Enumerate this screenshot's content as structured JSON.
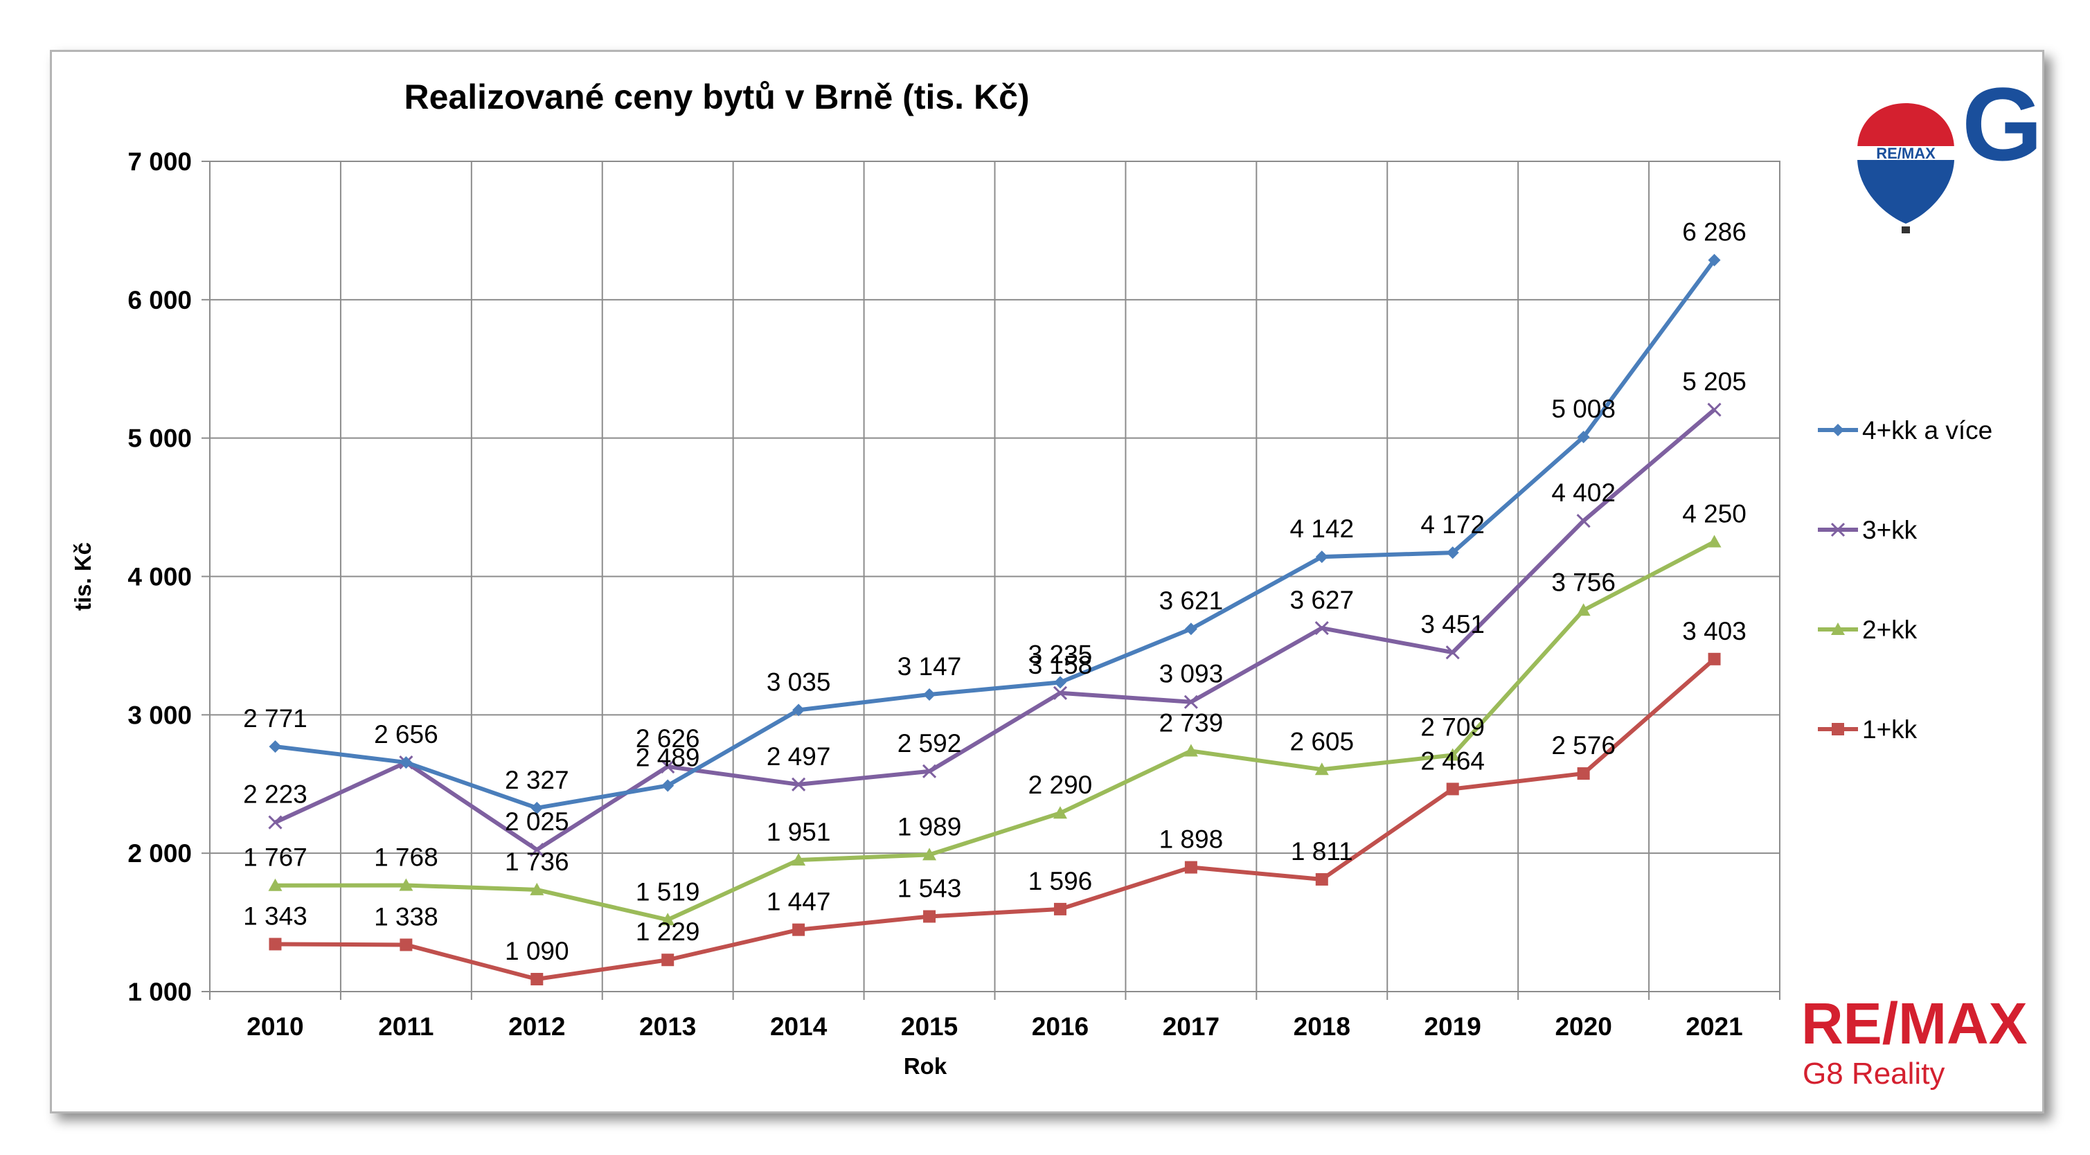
{
  "chart_data": {
    "type": "line",
    "title": "Realizované ceny bytů v Brně (tis. Kč)",
    "xlabel": "Rok",
    "ylabel": "tis. Kč",
    "categories": [
      "2010",
      "2011",
      "2012",
      "2013",
      "2014",
      "2015",
      "2016",
      "2017",
      "2018",
      "2019",
      "2020",
      "2021"
    ],
    "ylim": [
      1000,
      7000
    ],
    "yticks": [
      1000,
      2000,
      3000,
      4000,
      5000,
      6000,
      7000
    ],
    "ytick_labels": [
      "1 000",
      "2 000",
      "3 000",
      "4 000",
      "5 000",
      "6 000",
      "7 000"
    ],
    "grid": true,
    "legend_position": "right",
    "series": [
      {
        "name": "4+kk a více",
        "color": "#4a7ebb",
        "marker": "diamond",
        "values": [
          2771,
          2656,
          2327,
          2489,
          3035,
          3147,
          3235,
          3621,
          4142,
          4172,
          5008,
          6286
        ],
        "labels": [
          "2 771",
          "2 656",
          "2 327",
          "2 489",
          "3 035",
          "3 147",
          "3 235",
          "3 621",
          "4 142",
          "4 172",
          "5 008",
          "6 286"
        ]
      },
      {
        "name": "3+kk",
        "color": "#7e60a0",
        "marker": "x",
        "values": [
          2223,
          2656,
          2025,
          2626,
          2497,
          2592,
          3158,
          3093,
          3627,
          3451,
          4402,
          5205
        ],
        "labels": [
          "2 223",
          "",
          "2 025",
          "2 626",
          "2 497",
          "2 592",
          "3 158",
          "3 093",
          "3 627",
          "3 451",
          "4 402",
          "5 205"
        ]
      },
      {
        "name": "2+kk",
        "color": "#9bbb59",
        "marker": "triangle",
        "values": [
          1767,
          1768,
          1736,
          1519,
          1951,
          1989,
          2290,
          2739,
          2605,
          2709,
          3756,
          4250
        ],
        "labels": [
          "1 767",
          "1 768",
          "1 736",
          "1 519",
          "1 951",
          "1 989",
          "2 290",
          "2 739",
          "2 605",
          "2 709",
          "3 756",
          "4 250"
        ]
      },
      {
        "name": "1+kk",
        "color": "#c0504d",
        "marker": "square",
        "values": [
          1343,
          1338,
          1090,
          1229,
          1447,
          1543,
          1596,
          1898,
          1811,
          2464,
          2576,
          3403
        ],
        "labels": [
          "1 343",
          "1 338",
          "1 090",
          "1 229",
          "1 447",
          "1 543",
          "1 596",
          "1 898",
          "1 811",
          "2 464",
          "2 576",
          "3 403"
        ]
      }
    ]
  },
  "branding": {
    "balloon_text": "RE/MAX",
    "g8_text": "G8",
    "company_main": "RE/MAX",
    "company_sub": "G8 Reality"
  }
}
